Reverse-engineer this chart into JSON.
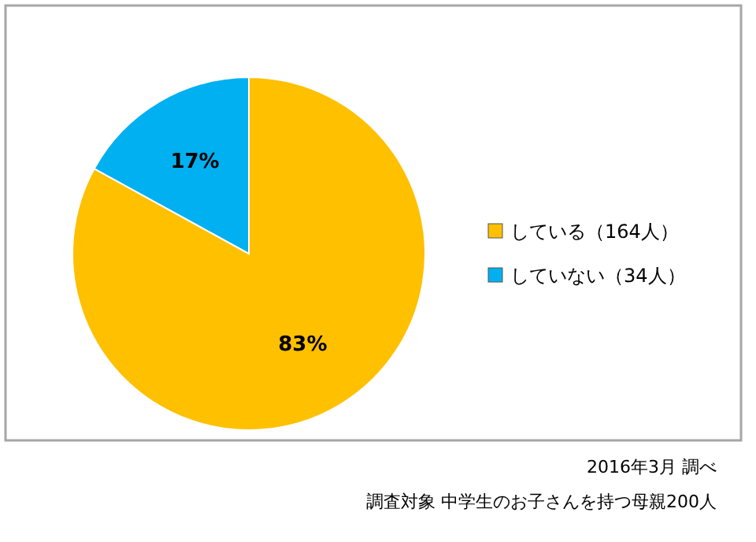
{
  "chart_data": {
    "type": "pie",
    "categories": [
      "している（164人）",
      "していない（34人）"
    ],
    "values": [
      83,
      17
    ],
    "colors": [
      "#ffc000",
      "#00b0f0"
    ],
    "value_labels": [
      "83%",
      "17%"
    ],
    "legend": "right",
    "annotations": [
      "2016年3月 調べ",
      "調査対象 中学生のお子さんを持つ母親200人"
    ]
  }
}
